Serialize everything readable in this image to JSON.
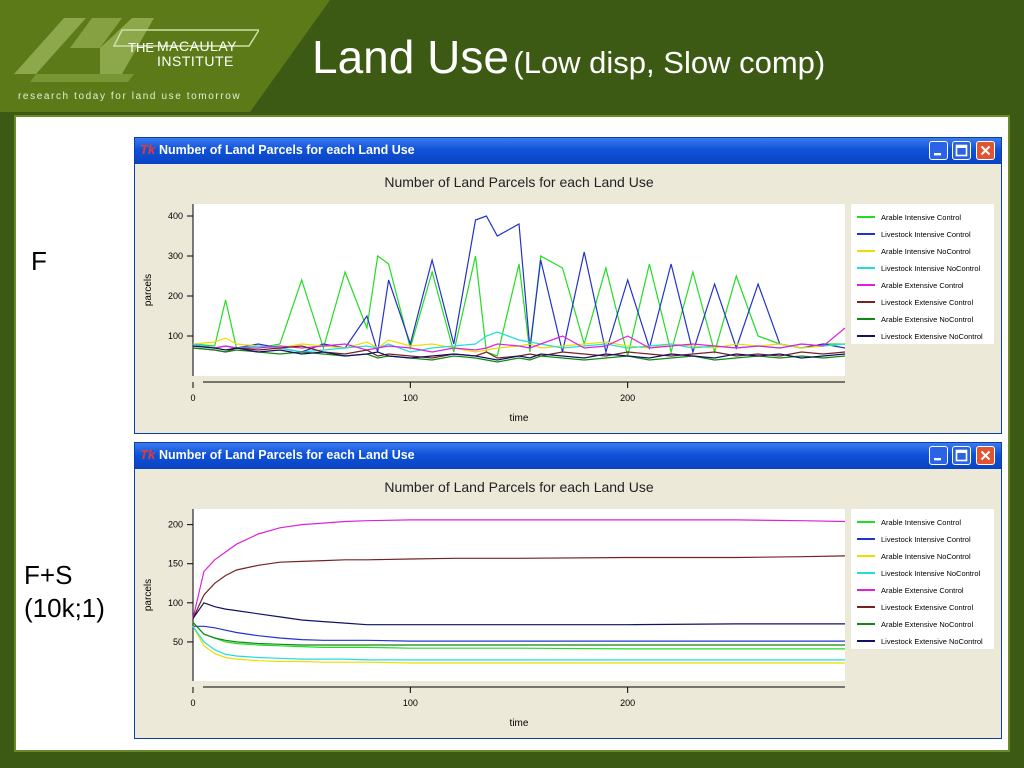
{
  "slide": {
    "logo_the": "THE",
    "logo_name_line1": "MACAULAY",
    "logo_name_line2": "INSTITUTE",
    "tagline": "research today for land use tomorrow",
    "title_main": "Land Use",
    "title_sub": "(Low disp, Slow comp)",
    "label_top": "F",
    "label_bottom": "F+S\n(10k;1)"
  },
  "colors": {
    "background": "#3d5a14",
    "logo_panel": "#5c7a18",
    "titlebar": "#0f52d8"
  },
  "windows": [
    {
      "title": "Number of Land Parcels for each Land Use",
      "icon": "app-icon",
      "buttons": [
        "minimize-icon",
        "maximize-icon",
        "close-icon"
      ]
    },
    {
      "title": "Number of Land Parcels for each Land Use",
      "icon": "app-icon",
      "buttons": [
        "minimize-icon",
        "maximize-icon",
        "close-icon"
      ]
    }
  ],
  "chart_data": [
    {
      "type": "line",
      "title": "Number of Land Parcels for each Land Use",
      "xlabel": "time",
      "ylabel": "parcels",
      "xlim": [
        0,
        300
      ],
      "ylim": [
        0,
        430
      ],
      "xticks": [
        0,
        100,
        200
      ],
      "yticks": [
        100,
        200,
        300,
        400
      ],
      "grid": false,
      "legend": "right",
      "x": [
        0,
        10,
        15,
        20,
        30,
        40,
        50,
        60,
        70,
        80,
        85,
        90,
        100,
        110,
        120,
        130,
        135,
        140,
        150,
        155,
        160,
        170,
        180,
        190,
        200,
        210,
        220,
        230,
        240,
        250,
        260,
        270,
        280,
        290,
        300
      ],
      "series": [
        {
          "name": "Arable Intensive Control",
          "color": "#22dd22",
          "values": [
            80,
            75,
            190,
            70,
            70,
            80,
            240,
            70,
            260,
            120,
            300,
            280,
            70,
            260,
            60,
            300,
            60,
            50,
            280,
            60,
            300,
            270,
            80,
            270,
            50,
            280,
            60,
            260,
            60,
            250,
            100,
            80,
            70,
            80,
            80
          ]
        },
        {
          "name": "Livestock Intensive Control",
          "color": "#2233cc",
          "values": [
            80,
            70,
            75,
            70,
            80,
            70,
            60,
            80,
            70,
            150,
            60,
            240,
            80,
            290,
            80,
            390,
            400,
            350,
            380,
            70,
            290,
            60,
            310,
            60,
            240,
            70,
            280,
            60,
            230,
            70,
            230,
            80,
            70,
            80,
            70
          ]
        },
        {
          "name": "Arable Intensive NoControl",
          "color": "#eedd00",
          "values": [
            80,
            85,
            95,
            80,
            75,
            70,
            80,
            75,
            70,
            85,
            70,
            90,
            75,
            80,
            70,
            60,
            65,
            70,
            75,
            80,
            70,
            75,
            80,
            85,
            75,
            70,
            80,
            75,
            70,
            80,
            75,
            80,
            70,
            75,
            80
          ]
        },
        {
          "name": "Livestock Intensive NoControl",
          "color": "#22dddd",
          "values": [
            80,
            70,
            75,
            70,
            75,
            70,
            60,
            65,
            70,
            75,
            70,
            80,
            60,
            70,
            75,
            80,
            100,
            110,
            90,
            85,
            80,
            70,
            75,
            80,
            70,
            75,
            80,
            70,
            75,
            70,
            75,
            70,
            80,
            75,
            80
          ]
        },
        {
          "name": "Arable Extensive Control",
          "color": "#dd22dd",
          "values": [
            75,
            70,
            75,
            70,
            70,
            75,
            70,
            75,
            80,
            65,
            70,
            75,
            70,
            60,
            70,
            65,
            70,
            80,
            75,
            70,
            80,
            100,
            70,
            75,
            100,
            70,
            75,
            80,
            75,
            70,
            75,
            70,
            80,
            75,
            120
          ]
        },
        {
          "name": "Livestock Extensive Control",
          "color": "#772222",
          "values": [
            70,
            65,
            60,
            70,
            65,
            70,
            75,
            60,
            55,
            65,
            50,
            55,
            50,
            45,
            55,
            50,
            60,
            45,
            50,
            55,
            50,
            60,
            55,
            50,
            60,
            55,
            50,
            55,
            60,
            50,
            55,
            50,
            60,
            55,
            60
          ]
        },
        {
          "name": "Arable Extensive NoControl",
          "color": "#118811",
          "values": [
            70,
            65,
            60,
            65,
            60,
            55,
            60,
            55,
            50,
            55,
            45,
            50,
            45,
            40,
            50,
            45,
            40,
            35,
            45,
            40,
            50,
            45,
            40,
            45,
            50,
            40,
            45,
            50,
            40,
            45,
            50,
            45,
            50,
            45,
            50
          ]
        },
        {
          "name": "Livestock Extensive NoControl",
          "color": "#111166",
          "values": [
            75,
            70,
            65,
            70,
            60,
            65,
            55,
            60,
            50,
            55,
            60,
            50,
            45,
            50,
            55,
            50,
            45,
            40,
            50,
            45,
            55,
            50,
            45,
            55,
            50,
            45,
            55,
            50,
            45,
            55,
            50,
            55,
            45,
            50,
            55
          ]
        }
      ]
    },
    {
      "type": "line",
      "title": "Number of Land Parcels for each Land Use",
      "xlabel": "time",
      "ylabel": "parcels",
      "xlim": [
        0,
        300
      ],
      "ylim": [
        0,
        220
      ],
      "xticks": [
        0,
        100,
        200
      ],
      "yticks": [
        50,
        100,
        150,
        200
      ],
      "grid": false,
      "legend": "right",
      "x": [
        0,
        5,
        10,
        15,
        20,
        30,
        40,
        50,
        60,
        70,
        80,
        100,
        120,
        150,
        200,
        250,
        280,
        300
      ],
      "series": [
        {
          "name": "Arable Intensive Control",
          "color": "#22dd22",
          "values": [
            75,
            60,
            55,
            50,
            48,
            46,
            45,
            44,
            43,
            43,
            43,
            42,
            42,
            42,
            41,
            41,
            41,
            41
          ]
        },
        {
          "name": "Livestock Intensive Control",
          "color": "#2233cc",
          "values": [
            70,
            70,
            68,
            65,
            62,
            58,
            55,
            53,
            52,
            52,
            52,
            51,
            51,
            51,
            51,
            51,
            51,
            51
          ]
        },
        {
          "name": "Arable Intensive NoControl",
          "color": "#eedd00",
          "values": [
            70,
            45,
            35,
            30,
            28,
            26,
            25,
            25,
            24,
            24,
            24,
            23,
            23,
            23,
            23,
            23,
            23,
            23
          ]
        },
        {
          "name": "Livestock Intensive NoControl",
          "color": "#22dddd",
          "values": [
            70,
            50,
            40,
            34,
            32,
            30,
            29,
            28,
            28,
            28,
            27,
            27,
            27,
            27,
            27,
            27,
            27,
            27
          ]
        },
        {
          "name": "Arable Extensive Control",
          "color": "#dd22dd",
          "values": [
            80,
            140,
            155,
            165,
            175,
            188,
            196,
            200,
            202,
            204,
            205,
            206,
            206,
            206,
            206,
            206,
            205,
            204
          ]
        },
        {
          "name": "Livestock Extensive Control",
          "color": "#772222",
          "values": [
            80,
            110,
            125,
            135,
            142,
            148,
            152,
            153,
            154,
            155,
            155,
            156,
            157,
            157,
            158,
            158,
            159,
            160
          ]
        },
        {
          "name": "Arable Extensive NoControl",
          "color": "#118811",
          "values": [
            75,
            60,
            55,
            52,
            50,
            48,
            47,
            46,
            46,
            46,
            46,
            46,
            46,
            46,
            46,
            46,
            46,
            46
          ]
        },
        {
          "name": "Livestock Extensive NoControl",
          "color": "#111166",
          "values": [
            80,
            100,
            95,
            92,
            90,
            86,
            82,
            78,
            76,
            74,
            72,
            72,
            72,
            72,
            72,
            73,
            73,
            73
          ]
        }
      ]
    }
  ]
}
